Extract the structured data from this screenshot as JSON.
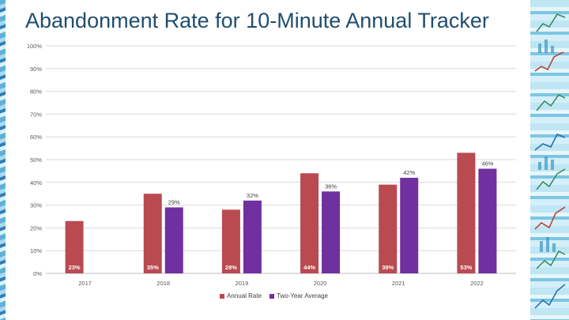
{
  "slide": {
    "title": "Abandonment Rate for 10-Minute Annual Tracker",
    "accent_title_color": "#1f4e6e",
    "decor_icon": "chart-collage"
  },
  "chart_data": {
    "type": "bar",
    "categories": [
      "2017",
      "2018",
      "2019",
      "2020",
      "2021",
      "2022"
    ],
    "series": [
      {
        "name": "Annual Rate",
        "color": "#b94a50",
        "values": [
          23,
          35,
          28,
          44,
          39,
          53
        ],
        "labels": [
          "23%",
          "35%",
          "28%",
          "44%",
          "39%",
          "53%"
        ]
      },
      {
        "name": "Two-Year Average",
        "color": "#7030a0",
        "values": [
          null,
          29,
          32,
          36,
          42,
          46
        ],
        "labels": [
          null,
          "29%",
          "32%",
          "36%",
          "42%",
          "46%"
        ]
      }
    ],
    "yticks": [
      "0%",
      "10%",
      "20%",
      "30%",
      "40%",
      "50%",
      "60%",
      "70%",
      "80%",
      "90%",
      "100%"
    ],
    "ylim": [
      0,
      100
    ],
    "grid": true,
    "legend_position": "bottom"
  }
}
